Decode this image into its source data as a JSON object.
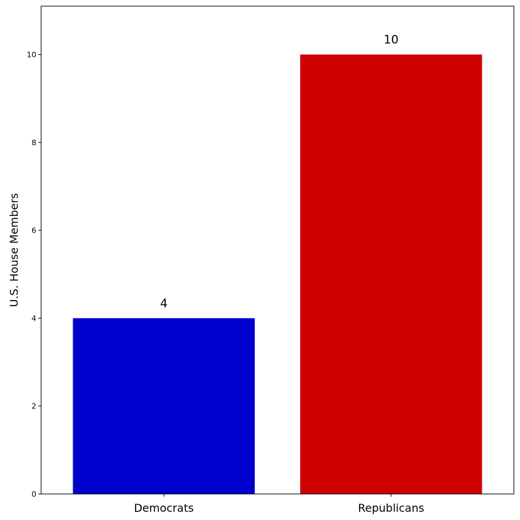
{
  "chart_data": {
    "type": "bar",
    "categories": [
      "Democrats",
      "Republicans"
    ],
    "values": [
      4,
      10
    ],
    "value_labels": [
      "4",
      "10"
    ],
    "colors": [
      "#0000cc",
      "#cc0000"
    ],
    "title": "",
    "xlabel": "",
    "ylabel": "U.S. House Members",
    "ylim": [
      0,
      11.1
    ],
    "yticks": [
      0,
      2,
      4,
      6,
      8,
      10
    ],
    "ytick_labels": [
      "0",
      "2",
      "4",
      "6",
      "8",
      "10"
    ],
    "grid": false,
    "legend": "none"
  }
}
